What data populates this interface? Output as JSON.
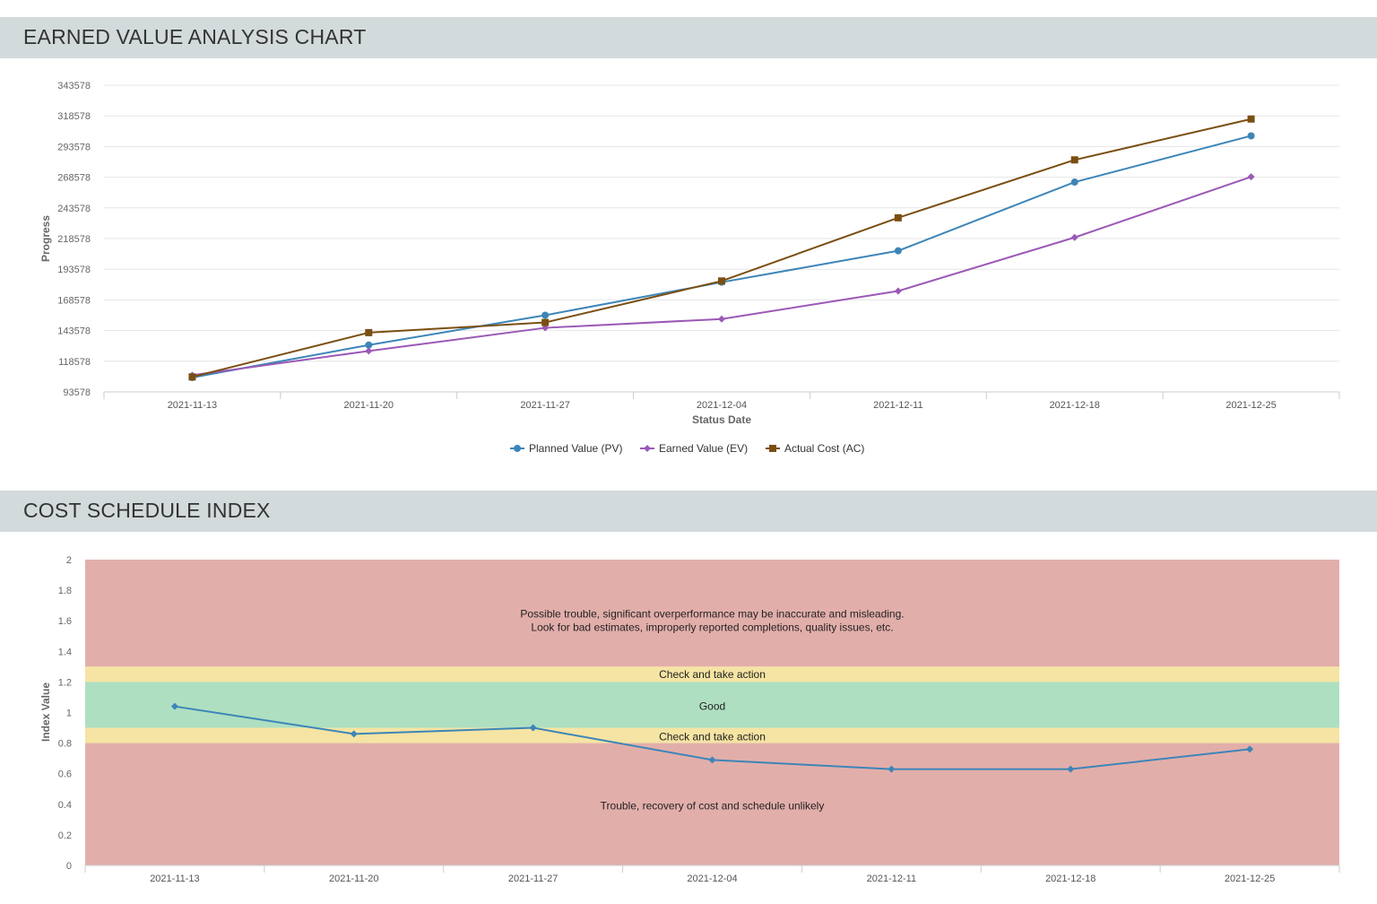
{
  "sections": {
    "ev_title": "EARNED VALUE ANALYSIS CHART",
    "csi_title": "COST SCHEDULE INDEX"
  },
  "colors": {
    "header_bg": "#d3dadb",
    "pv": "#3d85b8",
    "ev": "#9b59b6",
    "ac": "#7a4f12",
    "csi_line": "#3d85b8",
    "band_red": "#e2aeaa",
    "band_yellow": "#f5e4a3",
    "band_green": "#afdfc1"
  },
  "chart_data": [
    {
      "type": "line",
      "title": "EARNED VALUE ANALYSIS CHART",
      "xlabel": "Status Date",
      "ylabel": "Progress",
      "categories": [
        "2021-11-13",
        "2021-11-20",
        "2021-11-27",
        "2021-12-04",
        "2021-12-11",
        "2021-12-18",
        "2021-12-25"
      ],
      "yticks": [
        "93578",
        "118578",
        "143578",
        "168578",
        "193578",
        "218578",
        "243578",
        "268578",
        "293578",
        "318578",
        "343578"
      ],
      "ylim": [
        93578,
        343578
      ],
      "grid": true,
      "legend_position": "bottom",
      "series": [
        {
          "name": "Planned Value (PV)",
          "marker": "circle",
          "values": [
            105300,
            131800,
            156100,
            183000,
            208600,
            264600,
            302300
          ]
        },
        {
          "name": "Earned Value (EV)",
          "marker": "diamond",
          "values": [
            107200,
            126900,
            145800,
            153000,
            175800,
            219500,
            268900
          ]
        },
        {
          "name": "Actual Cost (AC)",
          "marker": "square",
          "values": [
            105800,
            141900,
            150200,
            184000,
            235500,
            282700,
            316000
          ]
        }
      ]
    },
    {
      "type": "line",
      "title": "COST SCHEDULE INDEX",
      "xlabel": "",
      "ylabel": "Index Value",
      "categories": [
        "2021-11-13",
        "2021-11-20",
        "2021-11-27",
        "2021-12-04",
        "2021-12-11",
        "2021-12-18",
        "2021-12-25"
      ],
      "yticks": [
        "0",
        "0.2",
        "0.4",
        "0.6",
        "0.8",
        "1",
        "1.2",
        "1.4",
        "1.6",
        "1.8",
        "2"
      ],
      "ylim": [
        0,
        2
      ],
      "series": [
        {
          "name": "",
          "marker": "diamond",
          "values": [
            1.04,
            0.86,
            0.9,
            0.69,
            0.63,
            0.63,
            0.76
          ]
        }
      ],
      "bands": [
        {
          "from": 1.3,
          "to": 2.0,
          "color": "#e2aeaa",
          "label_lines": [
            "Possible trouble, significant overperformance may be inaccurate and misleading.",
            "Look for bad estimates, improperly reported completions, quality issues, etc."
          ],
          "label_y": 1.6
        },
        {
          "from": 1.2,
          "to": 1.3,
          "color": "#f5e4a3",
          "label_lines": [
            "Check and take action"
          ],
          "label_y": 1.25
        },
        {
          "from": 0.9,
          "to": 1.2,
          "color": "#afdfc1",
          "label_lines": [
            "Good"
          ],
          "label_y": 1.04
        },
        {
          "from": 0.8,
          "to": 0.9,
          "color": "#f5e4a3",
          "label_lines": [
            "Check and take action"
          ],
          "label_y": 0.843
        },
        {
          "from": 0.0,
          "to": 0.8,
          "color": "#e2aeaa",
          "label_lines": [
            "Trouble, recovery of cost and schedule unlikely"
          ],
          "label_y": 0.39
        }
      ]
    }
  ]
}
